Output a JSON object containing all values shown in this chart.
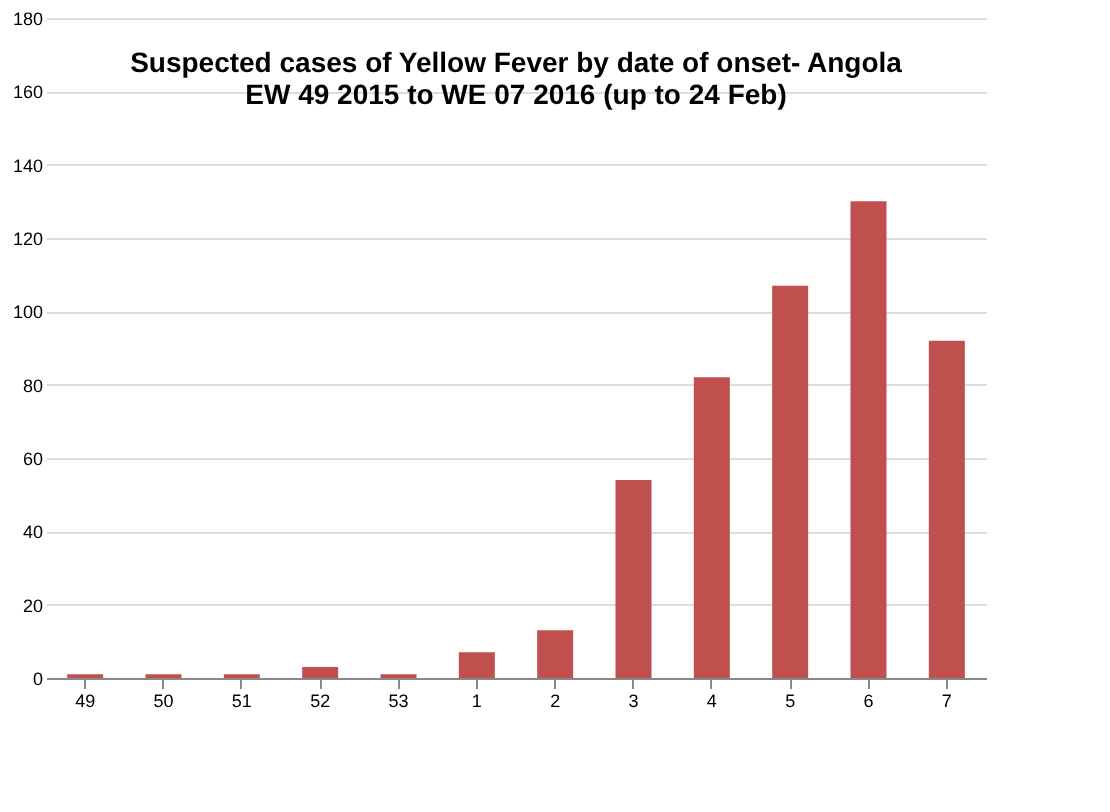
{
  "chart_data": {
    "type": "bar",
    "title": [
      "Suspected cases of Yellow Fever by date of onset- Angola",
      "EW 49 2015 to WE 07 2016 (up to 24 Feb)"
    ],
    "categories": [
      "49",
      "50",
      "51",
      "52",
      "53",
      "1",
      "2",
      "3",
      "4",
      "5",
      "6",
      "7"
    ],
    "values": [
      1,
      1,
      1,
      3,
      1,
      7,
      13,
      54,
      82,
      107,
      130,
      92
    ],
    "color": "#c0504d",
    "ylim": [
      0,
      180
    ],
    "yticks": [
      0,
      20,
      40,
      60,
      80,
      100,
      120,
      140,
      160,
      180
    ],
    "grid": "y"
  }
}
